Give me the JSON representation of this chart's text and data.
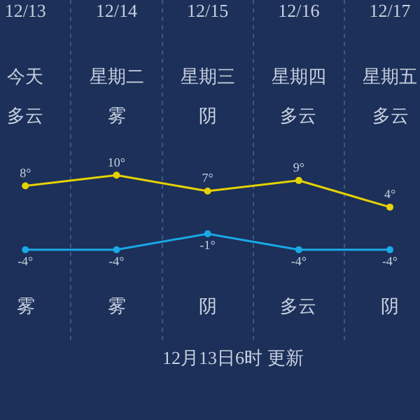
{
  "chart_data": {
    "type": "line",
    "categories": [
      "12/13",
      "12/14",
      "12/15",
      "12/16",
      "12/17"
    ],
    "series": [
      {
        "color": "#e6d200",
        "values": [
          8,
          10,
          7,
          9,
          4
        ],
        "value_labels": [
          "8°",
          "10°",
          "7°",
          "9°",
          "4°"
        ]
      },
      {
        "color": "#1aa8e6",
        "values": [
          -4,
          -4,
          -1,
          -4,
          -4
        ],
        "value_labels": [
          "-4°",
          "-4°",
          "-1°",
          "-4°",
          "-4°"
        ]
      }
    ],
    "annotations": [
      "今天",
      "星期二",
      "星期三",
      "星期四",
      "星期五",
      "多云",
      "雾",
      "阴",
      "多云",
      "多云",
      "雾",
      "雾",
      "阴",
      "多云",
      "阴",
      "12月13日6时 更新"
    ],
    "grid": "x",
    "marker": "circle"
  }
}
